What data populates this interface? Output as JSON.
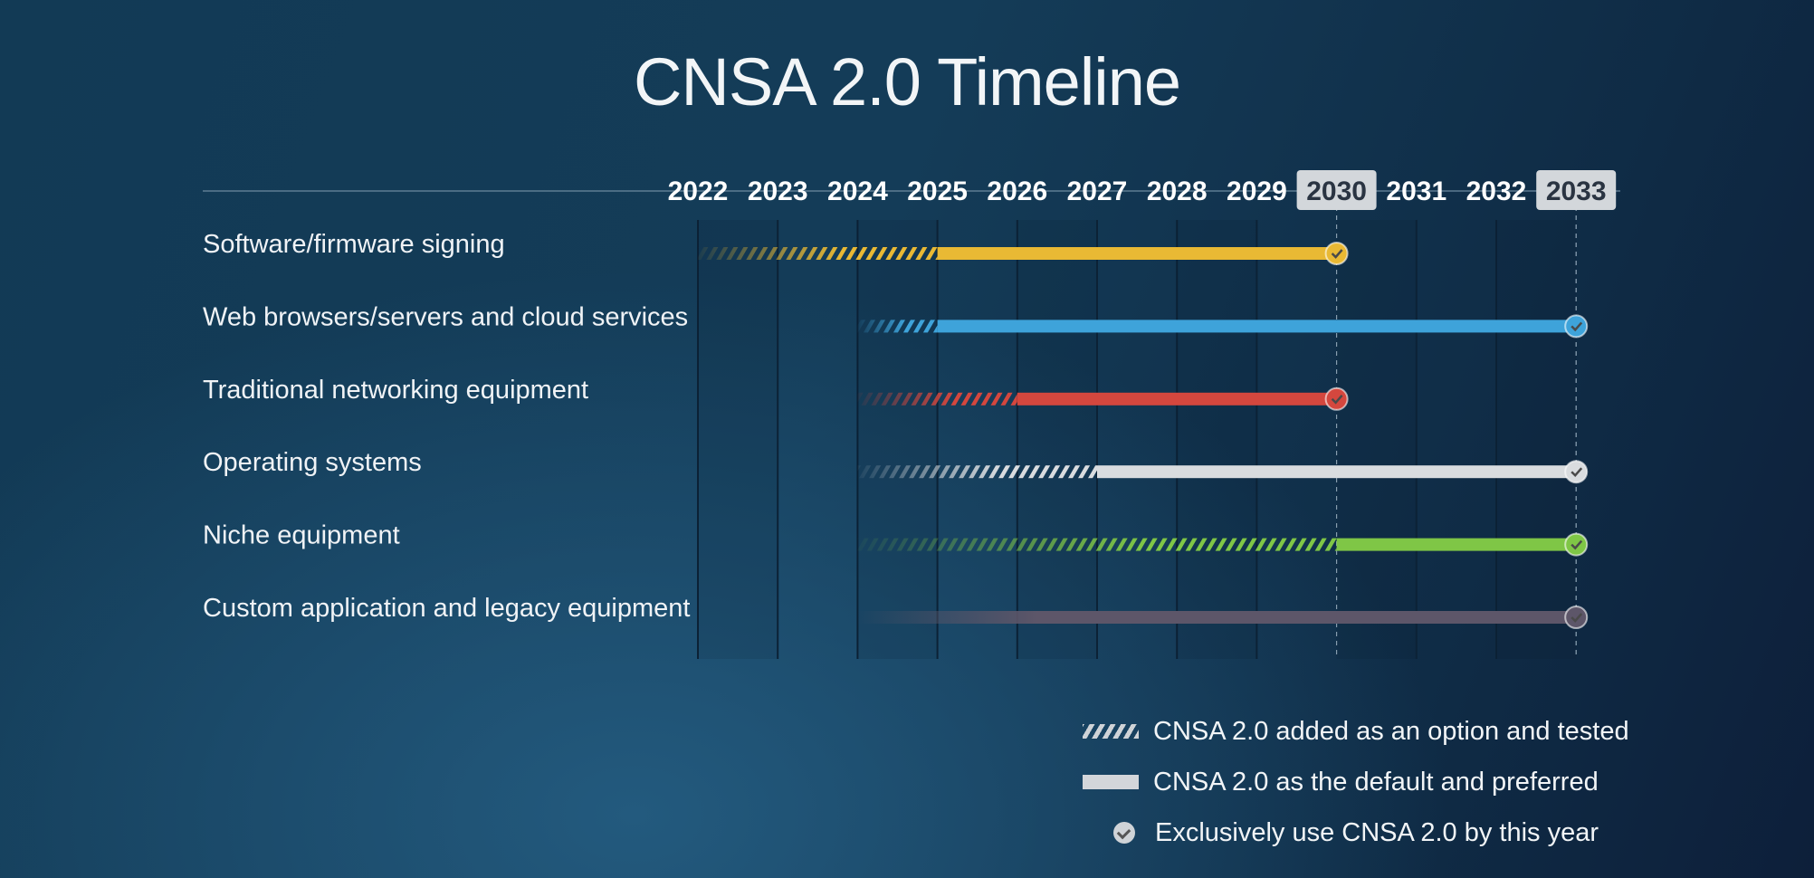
{
  "chart_data": {
    "type": "timeline",
    "title": "CNSA 2.0 Timeline",
    "years": [
      "2022",
      "2023",
      "2024",
      "2025",
      "2026",
      "2027",
      "2028",
      "2029",
      "2030",
      "2031",
      "2032",
      "2033"
    ],
    "highlighted_years": [
      "2030",
      "2033"
    ],
    "rows": [
      {
        "label": "Software/firmware signing",
        "color": "#e9b934",
        "option_start": 2022,
        "default_start": 2025,
        "exclusive": 2030
      },
      {
        "label": "Web browsers/servers and cloud services",
        "color": "#3ea3da",
        "option_start": 2024,
        "default_start": 2025,
        "exclusive": 2033
      },
      {
        "label": "Traditional networking equipment",
        "color": "#d4473e",
        "option_start": 2024,
        "default_start": 2026,
        "exclusive": 2030
      },
      {
        "label": "Operating systems",
        "color": "#d9dcdf",
        "option_start": 2024,
        "default_start": 2027,
        "exclusive": 2033
      },
      {
        "label": "Niche equipment",
        "color": "#7fc646",
        "option_start": 2024,
        "default_start": 2030,
        "exclusive": 2033
      },
      {
        "label": "Custom application and legacy equipment",
        "color": "#5d5669",
        "option_start": null,
        "default_start": 2024,
        "exclusive": 2033
      }
    ],
    "legend": {
      "hatched": "CNSA 2.0 added as an option and tested",
      "solid": "CNSA 2.0 as the default and preferred",
      "check": "Exclusively use CNSA 2.0 by this year"
    }
  }
}
